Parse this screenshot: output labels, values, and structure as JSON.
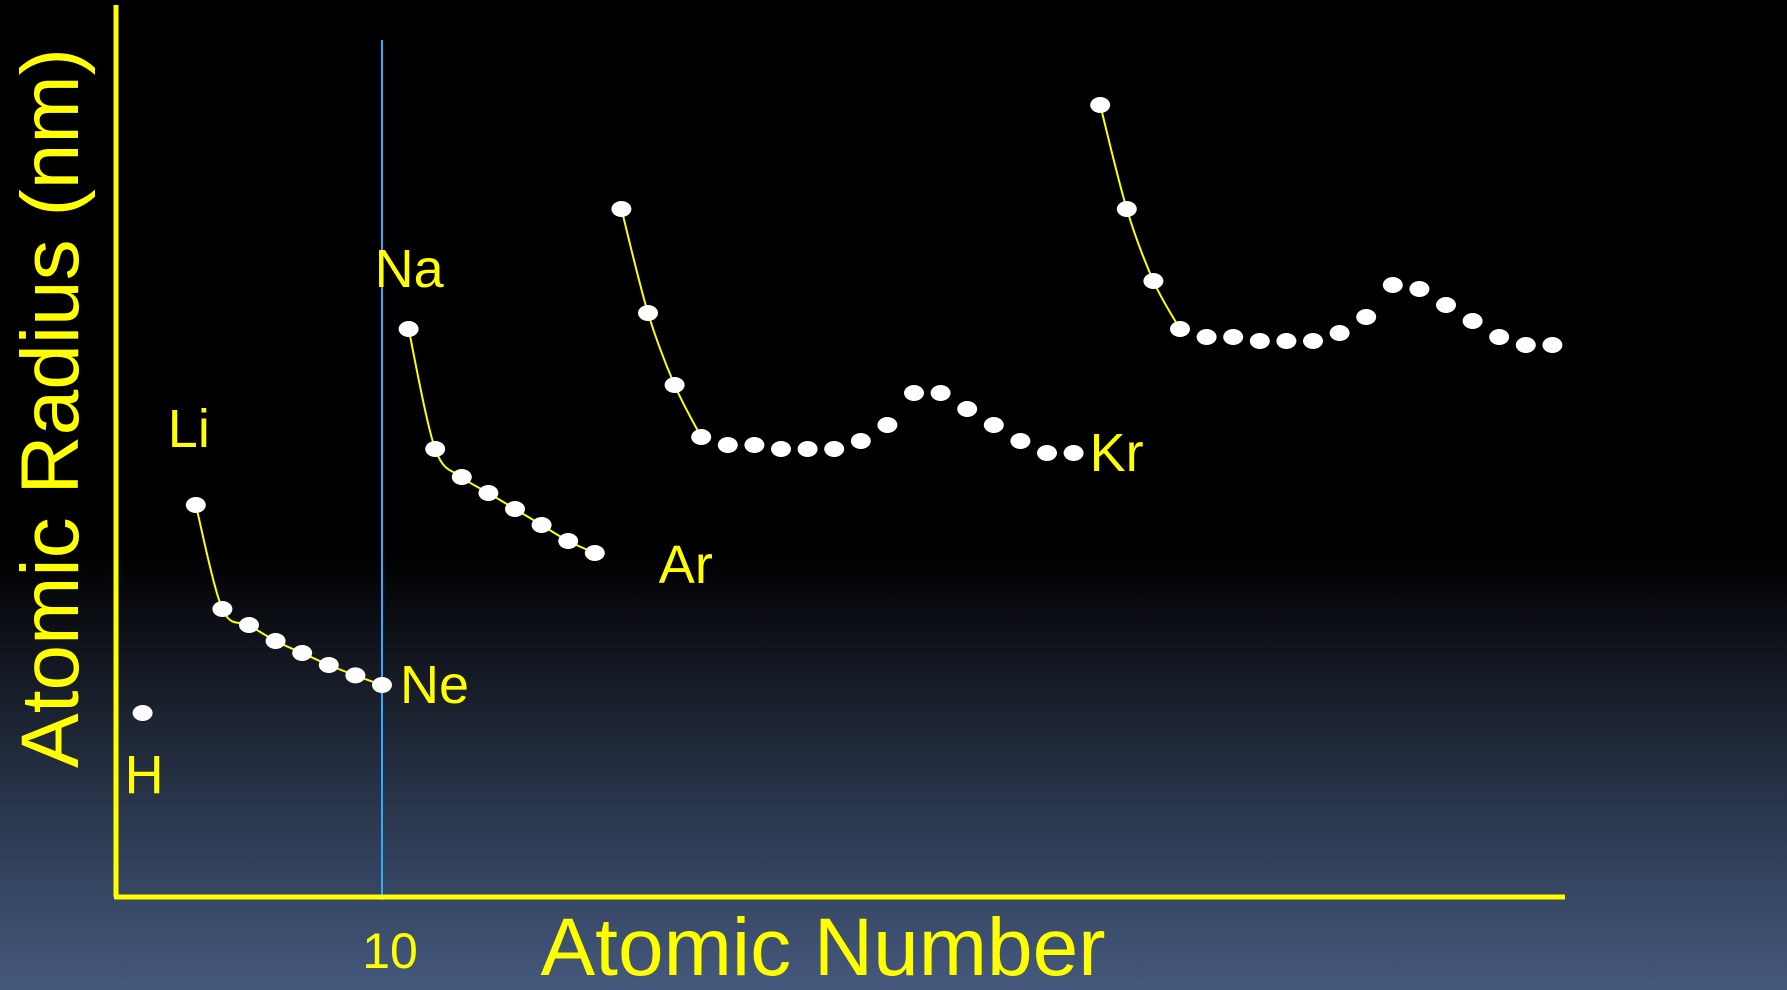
{
  "chart_data": {
    "type": "scatter",
    "title": "",
    "xlabel": "Atomic Number",
    "ylabel": "Atomic Radius (nm)",
    "x_ticks": [
      10
    ],
    "grid": false,
    "legend": "none",
    "reference_line": {
      "x": 10
    },
    "colors": {
      "axis": "#ffff00",
      "curve": "#ffff00",
      "points": "#ffffff",
      "labels": "#ffff00",
      "reference_line": "#33aaff"
    },
    "y_relative_scale": [
      0,
      100
    ],
    "series": [
      {
        "points": [
          {
            "x": 1,
            "y": 23
          }
        ]
      },
      {
        "points": [
          {
            "x": 3,
            "y": 49
          },
          {
            "x": 4,
            "y": 36
          },
          {
            "x": 5,
            "y": 34
          },
          {
            "x": 6,
            "y": 32
          },
          {
            "x": 7,
            "y": 30.5
          },
          {
            "x": 8,
            "y": 29
          },
          {
            "x": 9,
            "y": 27.7
          },
          {
            "x": 10,
            "y": 26.5
          }
        ],
        "curve": true
      },
      {
        "points": [
          {
            "x": 11,
            "y": 71
          },
          {
            "x": 12,
            "y": 56
          },
          {
            "x": 13,
            "y": 52.5
          },
          {
            "x": 14,
            "y": 50.5
          },
          {
            "x": 15,
            "y": 48.5
          },
          {
            "x": 16,
            "y": 46.5
          },
          {
            "x": 17,
            "y": 44.5
          },
          {
            "x": 18,
            "y": 43
          }
        ],
        "curve": true
      },
      {
        "points": [
          {
            "x": 19,
            "y": 86
          },
          {
            "x": 20,
            "y": 73
          },
          {
            "x": 21,
            "y": 64
          },
          {
            "x": 22,
            "y": 57.5
          },
          {
            "x": 23,
            "y": 56.5
          },
          {
            "x": 24,
            "y": 56.5
          },
          {
            "x": 25,
            "y": 56
          },
          {
            "x": 26,
            "y": 56
          },
          {
            "x": 27,
            "y": 56
          },
          {
            "x": 28,
            "y": 57
          },
          {
            "x": 29,
            "y": 59
          },
          {
            "x": 30,
            "y": 63
          },
          {
            "x": 31,
            "y": 63
          },
          {
            "x": 32,
            "y": 61
          },
          {
            "x": 33,
            "y": 59
          },
          {
            "x": 34,
            "y": 57
          },
          {
            "x": 35,
            "y": 55.5
          },
          {
            "x": 36,
            "y": 55.5
          }
        ],
        "curve": true,
        "curve_points": 4
      },
      {
        "points": [
          {
            "x": 37,
            "y": 99
          },
          {
            "x": 38,
            "y": 86
          },
          {
            "x": 39,
            "y": 77
          },
          {
            "x": 40,
            "y": 71
          },
          {
            "x": 41,
            "y": 70
          },
          {
            "x": 42,
            "y": 70
          },
          {
            "x": 43,
            "y": 69.5
          },
          {
            "x": 44,
            "y": 69.5
          },
          {
            "x": 45,
            "y": 69.5
          },
          {
            "x": 46,
            "y": 70.5
          },
          {
            "x": 47,
            "y": 72.5
          },
          {
            "x": 48,
            "y": 76.5
          },
          {
            "x": 49,
            "y": 76
          },
          {
            "x": 50,
            "y": 74
          },
          {
            "x": 51,
            "y": 72
          },
          {
            "x": 52,
            "y": 70
          },
          {
            "x": 53,
            "y": 69
          },
          {
            "x": 54,
            "y": 69
          }
        ],
        "curve": true,
        "curve_points": 4
      }
    ],
    "annotations": [
      {
        "text": "H",
        "x": 1,
        "y": 23
      },
      {
        "text": "Li",
        "x": 3,
        "y": 49
      },
      {
        "text": "Ne",
        "x": 10,
        "y": 26.5
      },
      {
        "text": "Na",
        "x": 11,
        "y": 71
      },
      {
        "text": "Ar",
        "x": 18,
        "y": 43
      },
      {
        "text": "Kr",
        "x": 36,
        "y": 55.5
      }
    ]
  }
}
